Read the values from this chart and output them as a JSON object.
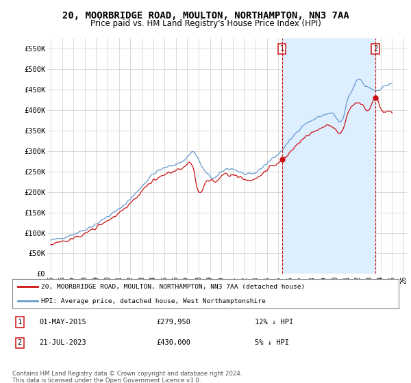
{
  "title": "20, MOORBRIDGE ROAD, MOULTON, NORTHAMPTON, NN3 7AA",
  "subtitle": "Price paid vs. HM Land Registry's House Price Index (HPI)",
  "title_fontsize": 10,
  "subtitle_fontsize": 8.5,
  "background_color": "#ffffff",
  "grid_color": "#cccccc",
  "ylim": [
    0,
    575000
  ],
  "yticks": [
    0,
    50000,
    100000,
    150000,
    200000,
    250000,
    300000,
    350000,
    400000,
    450000,
    500000,
    550000
  ],
  "ytick_labels": [
    "£0",
    "£50K",
    "£100K",
    "£150K",
    "£200K",
    "£250K",
    "£300K",
    "£350K",
    "£400K",
    "£450K",
    "£500K",
    "£550K"
  ],
  "hpi_color": "#6699cc",
  "price_color": "#cc1111",
  "fill_color": "#ddeeff",
  "marker1_x": 2015.33,
  "marker1_y": 279950,
  "marker1_label": "1",
  "marker2_x": 2023.54,
  "marker2_y": 430000,
  "marker2_label": "2",
  "legend_line1": "20, MOORBRIDGE ROAD, MOULTON, NORTHAMPTON, NN3 7AA (detached house)",
  "legend_line2": "HPI: Average price, detached house, West Northamptonshire",
  "table_row1_num": "1",
  "table_row1_date": "01-MAY-2015",
  "table_row1_price": "£279,950",
  "table_row1_hpi": "12% ↓ HPI",
  "table_row2_num": "2",
  "table_row2_date": "21-JUL-2023",
  "table_row2_price": "£430,000",
  "table_row2_hpi": "5% ↓ HPI",
  "footer": "Contains HM Land Registry data © Crown copyright and database right 2024.\nThis data is licensed under the Open Government Licence v3.0.",
  "xlim_left": 1995.0,
  "xlim_right": 2026.0
}
